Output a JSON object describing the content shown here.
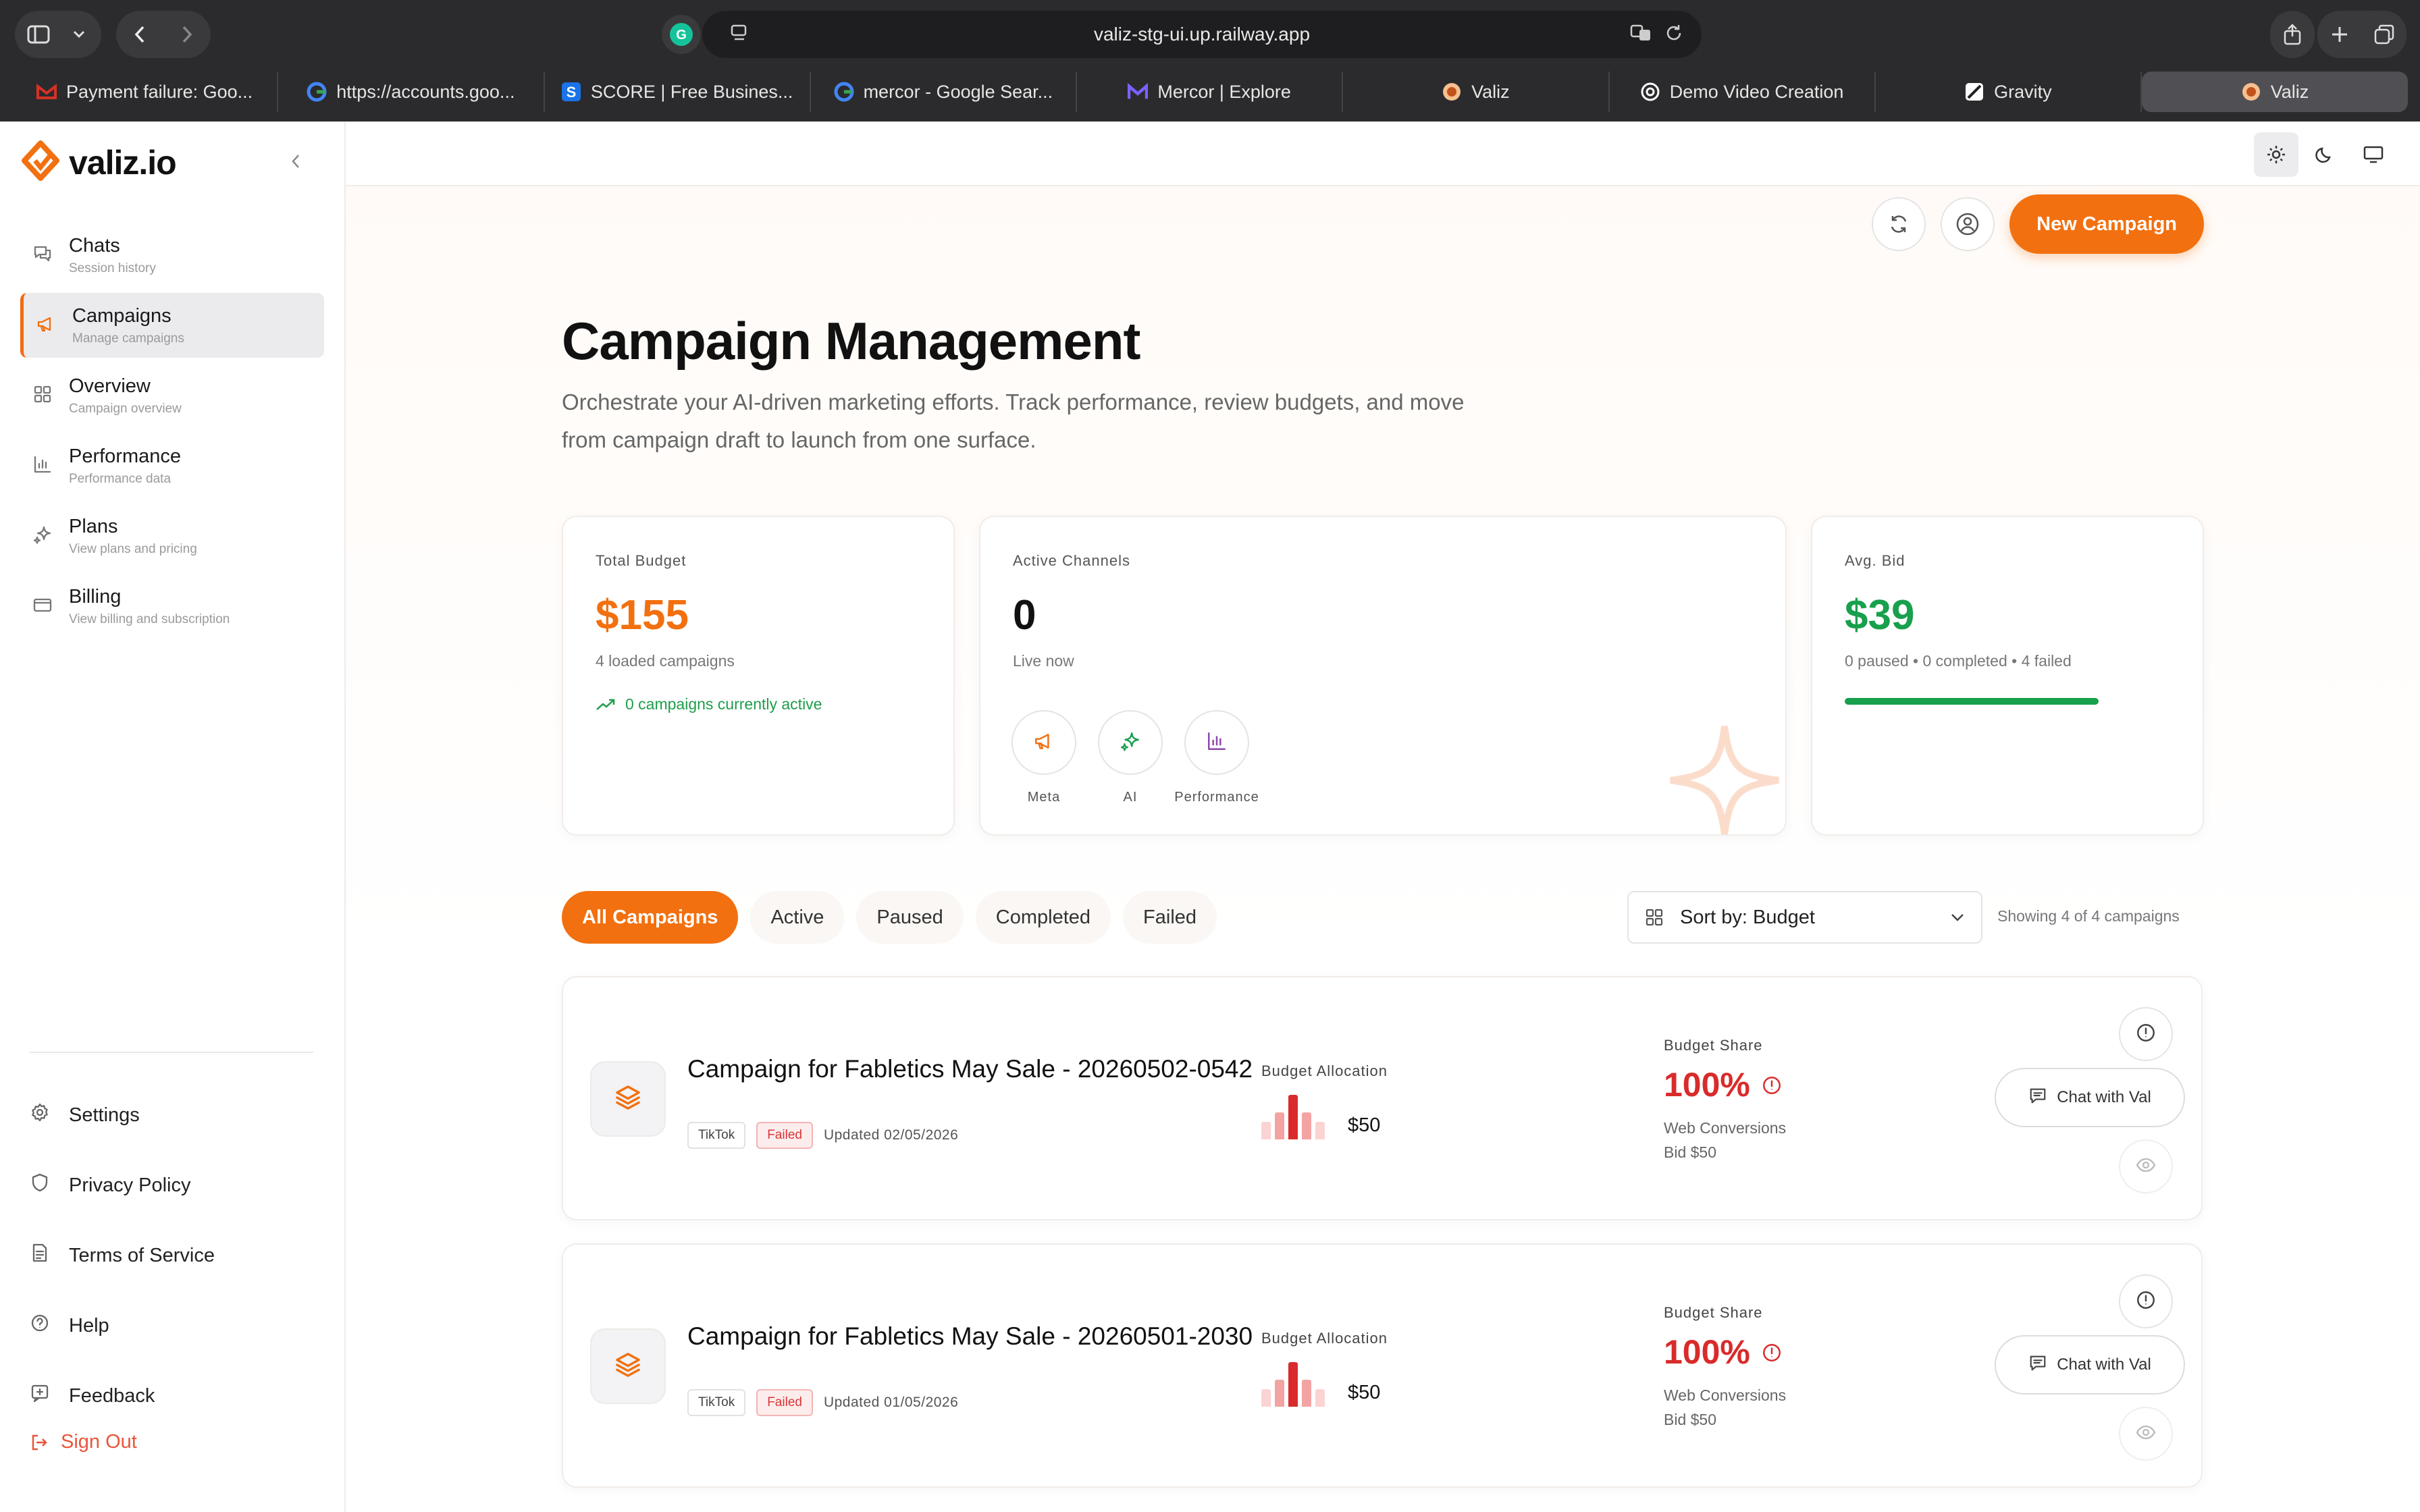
{
  "browser": {
    "url": "valiz-stg-ui.up.railway.app",
    "tabs": [
      {
        "label": "Payment failure: Goo...",
        "icon": "gmail-icon",
        "color": "#d93025"
      },
      {
        "label": "https://accounts.goo...",
        "icon": "google-icon",
        "color": "#4285f4"
      },
      {
        "label": "SCORE | Free Busines...",
        "icon": "score-icon",
        "color": "#1a73e8"
      },
      {
        "label": "mercor - Google Sear...",
        "icon": "google-icon",
        "color": "#4285f4"
      },
      {
        "label": "Mercor | Explore",
        "icon": "mercor-icon",
        "color": "#7b61ff"
      },
      {
        "label": "Valiz",
        "icon": "valiz-icon",
        "color": "#f2700f"
      },
      {
        "label": "Demo Video Creation",
        "icon": "openai-icon",
        "color": "#ffffff"
      },
      {
        "label": "Gravity",
        "icon": "gravity-icon",
        "color": "#ffffff"
      },
      {
        "label": "Valiz",
        "icon": "valiz-icon",
        "color": "#f2700f",
        "active": true
      }
    ]
  },
  "sidebar": {
    "logo_text": "valiz.io",
    "items": [
      {
        "label": "Chats",
        "sub": "Session history",
        "icon": "chat-icon"
      },
      {
        "label": "Campaigns",
        "sub": "Manage campaigns",
        "icon": "megaphone-icon",
        "active": true
      },
      {
        "label": "Overview",
        "sub": "Campaign overview",
        "icon": "grid-icon"
      },
      {
        "label": "Performance",
        "sub": "Performance data",
        "icon": "bar-chart-icon"
      },
      {
        "label": "Plans",
        "sub": "View plans and pricing",
        "icon": "sparkle-icon"
      },
      {
        "label": "Billing",
        "sub": "View billing and subscription",
        "icon": "card-icon"
      }
    ],
    "bottom": [
      {
        "label": "Settings",
        "icon": "gear-icon"
      },
      {
        "label": "Privacy Policy",
        "icon": "shield-icon"
      },
      {
        "label": "Terms of Service",
        "icon": "document-icon"
      },
      {
        "label": "Help",
        "icon": "help-icon"
      },
      {
        "label": "Feedback",
        "icon": "feedback-icon"
      }
    ],
    "sign_out": "Sign Out"
  },
  "header": {
    "new_campaign": "New Campaign",
    "title": "Campaign Management",
    "description": "Orchestrate your AI-driven marketing efforts. Track performance, review budgets, and move from campaign draft to launch from one surface."
  },
  "stats": {
    "total_budget": {
      "title": "Total Budget",
      "value": "$155",
      "sub": "4 loaded campaigns",
      "trend": "0 campaigns currently active",
      "color": "#f2700f"
    },
    "active_channels": {
      "title": "Active Channels",
      "value": "0",
      "sub": "Live now",
      "channels": [
        {
          "label": "Meta",
          "icon": "megaphone-icon"
        },
        {
          "label": "AI",
          "icon": "sparkle-icon"
        },
        {
          "label": "Performance",
          "icon": "bar-chart-icon"
        }
      ]
    },
    "avg_bid": {
      "title": "Avg. Bid",
      "value": "$39",
      "sub": "0 paused • 0 completed • 4 failed",
      "color": "#18a04d",
      "progress": 1.0
    }
  },
  "filters": {
    "chips": [
      "All Campaigns",
      "Active",
      "Paused",
      "Completed",
      "Failed"
    ],
    "active_index": 0,
    "sort_label": "Sort by: Budget",
    "showing": "Showing 4 of 4 campaigns"
  },
  "campaigns": [
    {
      "title": "Campaign for Fabletics May Sale - 20260502-0542",
      "platform": "TikTok",
      "status": "Failed",
      "updated": "Updated 02/05/2026",
      "alloc_title": "Budget Allocation",
      "alloc_amount": "$50",
      "share_title": "Budget Share",
      "share_value": "100%",
      "objective": "Web Conversions",
      "bid": "Bid $50",
      "chat_label": "Chat with Val"
    },
    {
      "title": "Campaign for Fabletics May Sale - 20260501-2030",
      "platform": "TikTok",
      "status": "Failed",
      "updated": "Updated 01/05/2026",
      "alloc_title": "Budget Allocation",
      "alloc_amount": "$50",
      "share_title": "Budget Share",
      "share_value": "100%",
      "objective": "Web Conversions",
      "bid": "Bid $50",
      "chat_label": "Chat with Val"
    }
  ]
}
